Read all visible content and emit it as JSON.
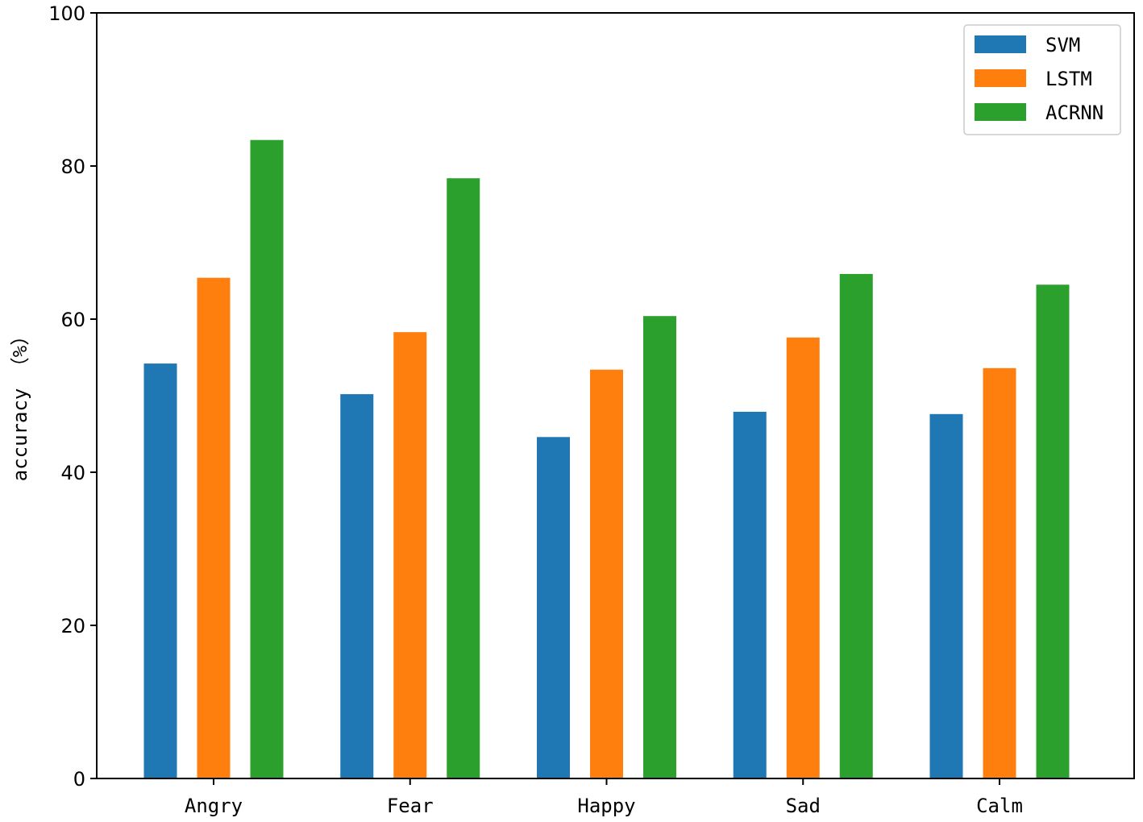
{
  "chart_data": {
    "type": "bar",
    "categories": [
      "Angry",
      "Fear",
      "Happy",
      "Sad",
      "Calm"
    ],
    "series": [
      {
        "name": "SVM",
        "color": "#1f77b4",
        "values": [
          54.2,
          50.2,
          44.6,
          47.9,
          47.6
        ]
      },
      {
        "name": "LSTM",
        "color": "#ff7f0e",
        "values": [
          65.4,
          58.3,
          53.4,
          57.6,
          53.6
        ]
      },
      {
        "name": "ACRNN",
        "color": "#2ca02c",
        "values": [
          83.4,
          78.4,
          60.4,
          65.9,
          64.5
        ]
      }
    ],
    "xlabel": "",
    "ylabel": "accuracy （%）",
    "ylim": [
      0,
      100
    ],
    "yticks": [
      0,
      20,
      40,
      60,
      80,
      100
    ],
    "grid": false,
    "legend_position": "top-right"
  }
}
